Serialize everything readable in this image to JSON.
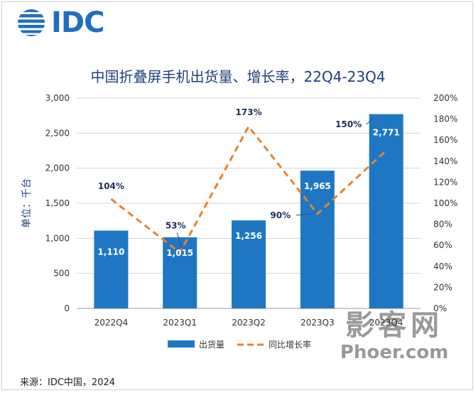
{
  "logo": {
    "text": "IDC"
  },
  "source": "来源：IDC中国，2024",
  "watermark": {
    "line1": "影客网",
    "line2": "Phoer.com"
  },
  "colors": {
    "bar": "#1f77c4",
    "line": "#e8822c",
    "title": "#1f3f7a",
    "grid": "#d0d4da"
  },
  "chart_data": {
    "type": "bar",
    "title": "中国折叠屏手机出货量、增长率，22Q4-23Q4",
    "ylabel": "单位：千台",
    "categories": [
      "2022Q4",
      "2023Q1",
      "2023Q2",
      "2023Q3",
      "2023Q4"
    ],
    "ylim": [
      0,
      3000
    ],
    "y_ticks": [
      "0",
      "500",
      "1,000",
      "1,500",
      "2,000",
      "2,500",
      "3,000"
    ],
    "y2lim": [
      0,
      200
    ],
    "y2_ticks": [
      "0%",
      "20%",
      "40%",
      "60%",
      "80%",
      "100%",
      "120%",
      "140%",
      "160%",
      "180%",
      "200%"
    ],
    "series": [
      {
        "name": "出货量",
        "type": "bar",
        "values": [
          1110,
          1015,
          1256,
          1965,
          2771
        ],
        "labels": [
          "1,110",
          "1,015",
          "1,256",
          "1,965",
          "2,771"
        ]
      },
      {
        "name": "同比增长率",
        "type": "line",
        "axis": "right",
        "values": [
          104,
          53,
          173,
          90,
          150
        ],
        "labels": [
          "104%",
          "53%",
          "173%",
          "90%",
          "150%"
        ]
      }
    ],
    "legend": "bottom",
    "grid": true
  }
}
